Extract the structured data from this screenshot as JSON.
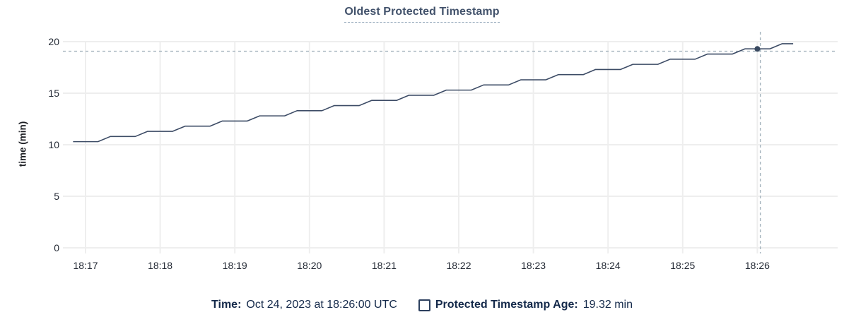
{
  "title": {
    "text": "Oldest Protected Timestamp"
  },
  "legend": {
    "time_label": "Time:",
    "time_value": "Oct 24, 2023 at 18:26:00 UTC",
    "series_checkbox_state": "unchecked",
    "series_label": "Protected Timestamp Age:",
    "series_value": "19.32 min"
  },
  "chart_data": {
    "type": "line",
    "title": "Oldest Protected Timestamp",
    "xlabel": "",
    "ylabel": "time (min)",
    "ylim": [
      0,
      20
    ],
    "yticks": [
      0,
      5,
      10,
      15,
      20
    ],
    "xticks": [
      {
        "label": "18:17",
        "t": 0
      },
      {
        "label": "18:18",
        "t": 1
      },
      {
        "label": "18:19",
        "t": 2
      },
      {
        "label": "18:20",
        "t": 3
      },
      {
        "label": "18:21",
        "t": 4
      },
      {
        "label": "18:22",
        "t": 5
      },
      {
        "label": "18:23",
        "t": 6
      },
      {
        "label": "18:24",
        "t": 7
      },
      {
        "label": "18:25",
        "t": 8
      },
      {
        "label": "18:26",
        "t": 9
      }
    ],
    "x_unit": "minutes after 18:17 UTC",
    "grid": true,
    "legend_position": "bottom",
    "series": [
      {
        "name": "Protected Timestamp Age",
        "color": "#3d4c66",
        "points": [
          [
            -0.167,
            10.3
          ],
          [
            0.167,
            10.3
          ],
          [
            0.333,
            10.8
          ],
          [
            0.667,
            10.8
          ],
          [
            0.833,
            11.3
          ],
          [
            1.167,
            11.3
          ],
          [
            1.333,
            11.8
          ],
          [
            1.667,
            11.8
          ],
          [
            1.833,
            12.3
          ],
          [
            2.167,
            12.3
          ],
          [
            2.333,
            12.8
          ],
          [
            2.667,
            12.8
          ],
          [
            2.833,
            13.3
          ],
          [
            3.167,
            13.3
          ],
          [
            3.333,
            13.8
          ],
          [
            3.667,
            13.8
          ],
          [
            3.833,
            14.3
          ],
          [
            4.167,
            14.3
          ],
          [
            4.333,
            14.8
          ],
          [
            4.667,
            14.8
          ],
          [
            4.833,
            15.3
          ],
          [
            5.167,
            15.3
          ],
          [
            5.333,
            15.8
          ],
          [
            5.667,
            15.8
          ],
          [
            5.833,
            16.3
          ],
          [
            6.167,
            16.3
          ],
          [
            6.333,
            16.8
          ],
          [
            6.667,
            16.8
          ],
          [
            6.833,
            17.3
          ],
          [
            7.167,
            17.3
          ],
          [
            7.333,
            17.8
          ],
          [
            7.667,
            17.8
          ],
          [
            7.833,
            18.3
          ],
          [
            8.167,
            18.3
          ],
          [
            8.333,
            18.8
          ],
          [
            8.667,
            18.8
          ],
          [
            8.833,
            19.3
          ],
          [
            9.167,
            19.3
          ],
          [
            9.333,
            19.8
          ],
          [
            9.48,
            19.8
          ]
        ]
      }
    ],
    "hover": {
      "time_label": "18:26:00",
      "t": 9.0,
      "value": 19.3,
      "crosshair_t": 9.04,
      "crosshair_value": 19.07
    },
    "colors": {
      "grid": "#eeeeee",
      "axis_text": "#242a35",
      "crosshair": "#a3b2bc",
      "dot": "#394960"
    }
  }
}
